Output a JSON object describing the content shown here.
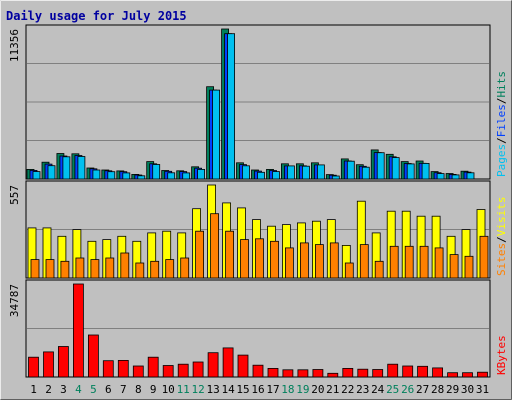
{
  "chart_data": {
    "type": "bar",
    "title": "Daily usage for July 2015",
    "colors": {
      "background": "#c0c0c0",
      "frame": "#ececec",
      "title": "#0000a0",
      "pages": "#00c0f0",
      "files": "#0040ff",
      "hits": "#00805c",
      "sites": "#ff8000",
      "visits": "#ffff00",
      "kbytes": "#ff0000",
      "weekend_label": "#00805c",
      "weekday_label": "#000000",
      "grid": "#808080"
    },
    "days": [
      "1",
      "2",
      "3",
      "4",
      "5",
      "6",
      "7",
      "8",
      "9",
      "10",
      "11",
      "12",
      "13",
      "14",
      "15",
      "16",
      "17",
      "18",
      "19",
      "20",
      "21",
      "22",
      "23",
      "24",
      "25",
      "26",
      "27",
      "28",
      "29",
      "30",
      "31"
    ],
    "weekend_days": [
      "4",
      "5",
      "11",
      "12",
      "18",
      "19",
      "25",
      "26"
    ],
    "panels": [
      {
        "id": "hits-files-pages",
        "ymax_label": "11356",
        "ymax": 11356,
        "legend": [
          {
            "text": "Pages",
            "color": "#00c0f0"
          },
          {
            "text": "/",
            "color": "#000000"
          },
          {
            "text": "Files",
            "color": "#0040ff"
          },
          {
            "text": "/",
            "color": "#000000"
          },
          {
            "text": "Hits",
            "color": "#00805c"
          }
        ],
        "series": [
          {
            "name": "Hits",
            "color": "#00805c",
            "values": [
              730,
              1270,
              1930,
              1910,
              830,
              680,
              610,
              350,
              1320,
              640,
              620,
              920,
              6990,
              11356,
              1230,
              680,
              730,
              1150,
              1150,
              1230,
              330,
              1520,
              1080,
              2200,
              1870,
              1320,
              1360,
              560,
              420,
              590,
              0
            ]
          },
          {
            "name": "Files",
            "color": "#0040ff",
            "values": [
              650,
              1130,
              1740,
              1780,
              770,
              620,
              550,
              300,
              1150,
              580,
              560,
              820,
              6730,
              11000,
              1090,
              600,
              640,
              990,
              1000,
              1070,
              290,
              1360,
              960,
              2000,
              1680,
              1170,
              1190,
              480,
              350,
              520,
              0
            ]
          },
          {
            "name": "Pages",
            "color": "#00c0f0",
            "values": [
              560,
              1010,
              1680,
              1700,
              680,
              550,
              460,
              240,
              1100,
              470,
              460,
              730,
              6730,
              11000,
              1000,
              510,
              560,
              990,
              970,
              1070,
              230,
              1350,
              890,
              1990,
              1620,
              1140,
              1180,
              410,
              310,
              470,
              0
            ]
          }
        ]
      },
      {
        "id": "visits-sites",
        "ymax_label": "557",
        "ymax": 557,
        "legend": [
          {
            "text": "Sites",
            "color": "#ff8000"
          },
          {
            "text": "/",
            "color": "#000000"
          },
          {
            "text": "Visits",
            "color": "#ffff00"
          }
        ],
        "series": [
          {
            "name": "Visits",
            "color": "#ffff00",
            "values": [
              300,
              300,
              250,
              290,
              220,
              230,
              250,
              220,
              270,
              280,
              270,
              415,
              557,
              450,
              420,
              350,
              310,
              320,
              330,
              340,
              350,
              195,
              460,
              270,
              400,
              400,
              370,
              370,
              250,
              290,
              410
            ]
          },
          {
            "name": "Sites",
            "color": "#ff8000",
            "values": [
              110,
              110,
              100,
              120,
              110,
              120,
              150,
              90,
              100,
              110,
              120,
              280,
              385,
              280,
              230,
              235,
              220,
              180,
              210,
              200,
              210,
              90,
              200,
              100,
              190,
              190,
              190,
              180,
              140,
              130,
              250
            ]
          }
        ]
      },
      {
        "id": "kbytes",
        "ymax_label": "34787",
        "ymax": 34787,
        "legend": [
          {
            "text": "KBytes",
            "color": "#ff0000"
          }
        ],
        "series": [
          {
            "name": "KBytes",
            "color": "#ff0000",
            "values": [
              7400,
              9400,
              11400,
              34787,
              15700,
              6100,
              6200,
              4100,
              7400,
              4300,
              4800,
              5600,
              9100,
              10900,
              8200,
              4400,
              3200,
              2700,
              2700,
              2800,
              1400,
              3200,
              2900,
              2800,
              4800,
              4100,
              4000,
              3400,
              1600,
              1600,
              1800
            ]
          }
        ]
      }
    ]
  }
}
